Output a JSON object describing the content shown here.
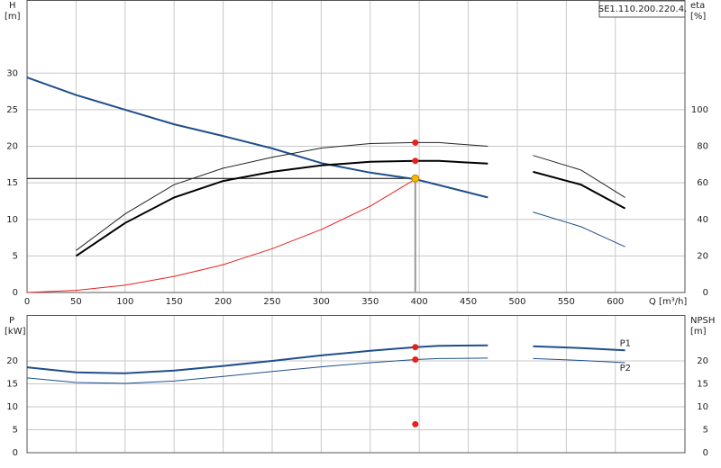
{
  "chart_data": [
    {
      "type": "line",
      "label_box": "SE1.110.200.220.4.",
      "y_label": "H",
      "y_unit": "[m]",
      "y2_label": "eta",
      "y2_unit": "[%]",
      "x_label": "Q [m³/h]",
      "x": [
        0,
        50,
        100,
        150,
        200,
        250,
        300,
        350,
        396,
        420,
        470,
        490,
        516,
        565,
        610
      ],
      "xlim": [
        0,
        671
      ],
      "xticks": [
        0,
        50,
        100,
        150,
        200,
        250,
        300,
        350,
        400,
        450,
        500,
        550,
        600
      ],
      "ylim": [
        0,
        40
      ],
      "yticks": [
        0,
        5,
        10,
        15,
        20,
        25,
        30
      ],
      "y2lim": [
        0,
        160
      ],
      "y2ticks": [
        0,
        20,
        40,
        60,
        80,
        100
      ],
      "grid": true,
      "series": [
        {
          "color": "#1f4e8c",
          "width": 2,
          "axis": "y",
          "values": [
            29.4,
            27,
            25,
            23,
            21.4,
            19.7,
            17.7,
            16.4,
            15.5,
            14.7,
            13,
            null,
            null,
            null,
            null
          ]
        },
        {
          "color": "#222222",
          "width": 1,
          "axis": "y2",
          "values": [
            null,
            23,
            43,
            59,
            68,
            74,
            79,
            81.5,
            82,
            82,
            80,
            null,
            75,
            67,
            52
          ]
        },
        {
          "color": "#000000",
          "width": 2,
          "axis": "y2",
          "values": [
            null,
            20,
            38,
            52,
            61,
            66,
            69.5,
            71.5,
            72,
            72,
            70.5,
            null,
            66,
            59,
            46
          ]
        },
        {
          "color": "#1f4e8c",
          "width": 1,
          "axis": "y2",
          "values": [
            null,
            null,
            null,
            null,
            null,
            null,
            null,
            null,
            null,
            null,
            null,
            null,
            44,
            36,
            25
          ]
        },
        {
          "color": "#e8201c",
          "width": 1,
          "axis": "y",
          "values": [
            0,
            0.3,
            1,
            2.2,
            3.8,
            6,
            8.6,
            11.8,
            15.5,
            null,
            null,
            null,
            null,
            null,
            null
          ]
        }
      ],
      "markers": [
        {
          "x": 396,
          "value": 82,
          "axis": "y2",
          "color": "#e8201c"
        },
        {
          "x": 396,
          "value": 72,
          "axis": "y2",
          "color": "#e8201c"
        }
      ],
      "duty_point": {
        "x": 396,
        "value": 15.6,
        "color": "#f5b800"
      }
    },
    {
      "type": "line",
      "y_label": "P",
      "y_unit": "[kW]",
      "y2_label": "NPSH",
      "y2_unit": "[m]",
      "x": [
        0,
        50,
        100,
        150,
        200,
        250,
        300,
        350,
        396,
        420,
        470,
        490,
        516,
        565,
        610
      ],
      "xlim": [
        0,
        671
      ],
      "ylim": [
        0,
        30
      ],
      "yticks": [
        0,
        5,
        10,
        15,
        20
      ],
      "y2lim": [
        0,
        30
      ],
      "y2ticks": [
        0,
        5,
        10,
        15,
        20
      ],
      "grid": true,
      "series": [
        {
          "name": "P1",
          "color": "#1f4e8c",
          "width": 2,
          "axis": "y",
          "values": [
            18.6,
            17.5,
            17.3,
            17.9,
            18.9,
            20,
            21.2,
            22.2,
            23,
            23.3,
            23.4,
            null,
            23.2,
            22.8,
            22.3
          ]
        },
        {
          "name": "P2",
          "color": "#1f4e8c",
          "width": 1,
          "axis": "y",
          "values": [
            16.3,
            15.3,
            15.1,
            15.6,
            16.6,
            17.7,
            18.7,
            19.6,
            20.3,
            20.5,
            20.6,
            null,
            20.5,
            20.1,
            19.6
          ]
        }
      ],
      "markers": [
        {
          "x": 396,
          "value": 23,
          "axis": "y",
          "color": "#e8201c"
        },
        {
          "x": 396,
          "value": 20.3,
          "axis": "y2",
          "color": "#e8201c"
        },
        {
          "x": 396,
          "value": 6.2,
          "axis": "y2",
          "color": "#e8201c"
        }
      ]
    }
  ]
}
